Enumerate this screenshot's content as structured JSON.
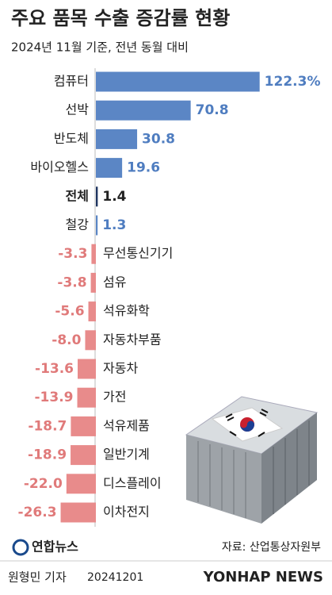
{
  "chart_data": {
    "type": "hbar",
    "title": "주요 품목 수출 증감률 현황",
    "subtitle": "2024년 11월 기준, 전년 동월 대비",
    "categories": [
      "컴퓨터",
      "선박",
      "반도체",
      "바이오헬스",
      "전체",
      "철강",
      "무선통신기기",
      "섬유",
      "석유화학",
      "자동차부품",
      "자동차",
      "가전",
      "석유제품",
      "일반기계",
      "디스플레이",
      "이차전지"
    ],
    "values": [
      122.3,
      70.8,
      30.8,
      19.6,
      1.4,
      1.3,
      -3.3,
      -3.8,
      -5.6,
      -8.0,
      -13.6,
      -13.9,
      -18.7,
      -18.9,
      -22.0,
      -26.3
    ],
    "value_labels": [
      "122.3%",
      "70.8",
      "30.8",
      "19.6",
      "1.4",
      "1.3",
      "-3.3",
      "-3.8",
      "-5.6",
      "-8.0",
      "-13.6",
      "-13.9",
      "-18.7",
      "-18.9",
      "-22.0",
      "-26.3"
    ],
    "colors": [
      "#5b86c5",
      "#5b86c5",
      "#5b86c5",
      "#5b86c5",
      "#1f3560",
      "#5b86c5",
      "#e88b8b",
      "#e88b8b",
      "#e88b8b",
      "#e88b8b",
      "#e88b8b",
      "#e88b8b",
      "#e88b8b",
      "#e88b8b",
      "#e88b8b",
      "#e88b8b"
    ],
    "bold": [
      false,
      false,
      false,
      false,
      true,
      false,
      false,
      false,
      false,
      false,
      false,
      false,
      false,
      false,
      false,
      false
    ],
    "source": "자료: 산업통상자원부"
  },
  "logo": "연합뉴스",
  "reporter": "원형민 기자",
  "date": "20241201",
  "watermark": "YONHAP NEWS"
}
